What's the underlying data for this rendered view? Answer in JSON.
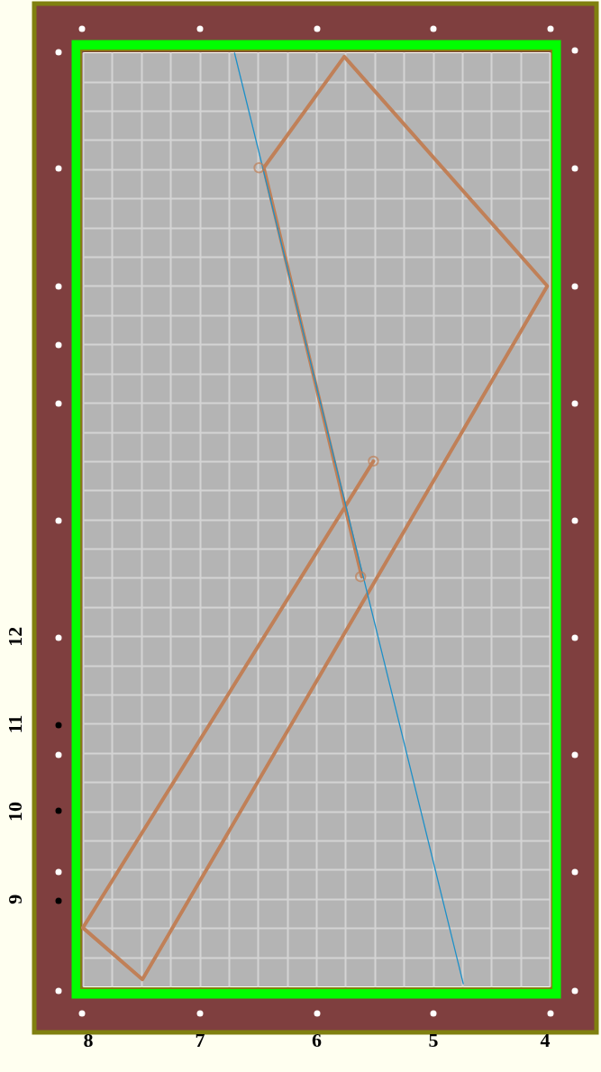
{
  "chart_data": {
    "type": "line",
    "xlim": [
      8,
      4
    ],
    "ylim": [
      8,
      18.67
    ],
    "xticks": [
      8,
      {
        "value": 7.75,
        "label": null
      },
      {
        "value": 7.5,
        "label": null
      },
      {
        "value": 7.25,
        "label": null
      },
      7,
      {
        "value": 6.75,
        "label": null
      },
      {
        "value": 6.5,
        "label": null
      },
      {
        "value": 6.25,
        "label": null
      },
      6,
      {
        "value": 5.75,
        "label": null
      },
      {
        "value": 5.5,
        "label": null
      },
      {
        "value": 5.25,
        "label": null
      },
      5,
      {
        "value": 4.75,
        "label": null
      },
      {
        "value": 4.5,
        "label": null
      },
      {
        "value": 4.25,
        "label": null
      },
      4
    ],
    "yticks": [
      {
        "value": 8.333,
        "label": null
      },
      {
        "value": 8.667,
        "label": null
      },
      9,
      {
        "value": 9.333,
        "label": null
      },
      {
        "value": 9.667,
        "label": null
      },
      10,
      {
        "value": 10.333,
        "label": null
      },
      {
        "value": 10.667,
        "label": null
      },
      11,
      {
        "value": 11.333,
        "label": null
      },
      {
        "value": 11.667,
        "label": null
      },
      12,
      {
        "value": 12.333,
        "label": null
      },
      {
        "value": 12.667,
        "label": null
      },
      {
        "value": 13,
        "label": null
      },
      {
        "value": 13.333,
        "label": null
      },
      {
        "value": 13.667,
        "label": null
      },
      {
        "value": 14,
        "label": null
      },
      {
        "value": 14.333,
        "label": null
      },
      {
        "value": 14.667,
        "label": null
      },
      {
        "value": 15,
        "label": null
      },
      {
        "value": 15.333,
        "label": null
      },
      {
        "value": 15.667,
        "label": null
      },
      {
        "value": 16,
        "label": null
      },
      {
        "value": 16.333,
        "label": null
      },
      {
        "value": 16.667,
        "label": null
      },
      {
        "value": 17,
        "label": null
      },
      {
        "value": 17.333,
        "label": null
      },
      {
        "value": 17.667,
        "label": null
      },
      {
        "value": 18,
        "label": null
      },
      {
        "value": 18.333,
        "label": null
      }
    ],
    "grid": true,
    "series": [
      {
        "type": "line",
        "color": "#c08058",
        "marker": "none",
        "x": [
          5.51,
          8,
          7.49,
          4.02,
          5.76,
          6.45,
          5.61
        ],
        "values": [
          14.0,
          8.67,
          8.08,
          16.0,
          18.62,
          17.35,
          12.68
        ]
      },
      {
        "type": "line",
        "color": "#1e90c8",
        "marker": "none",
        "x": [
          6.7,
          4.74
        ],
        "values": [
          18.66,
          8.03
        ]
      },
      {
        "type": "scatter",
        "color": "#c08058",
        "marker": "circle",
        "x": [
          6.49,
          5.51,
          5.62
        ],
        "values": [
          17.35,
          14.0,
          12.68
        ]
      }
    ]
  }
}
